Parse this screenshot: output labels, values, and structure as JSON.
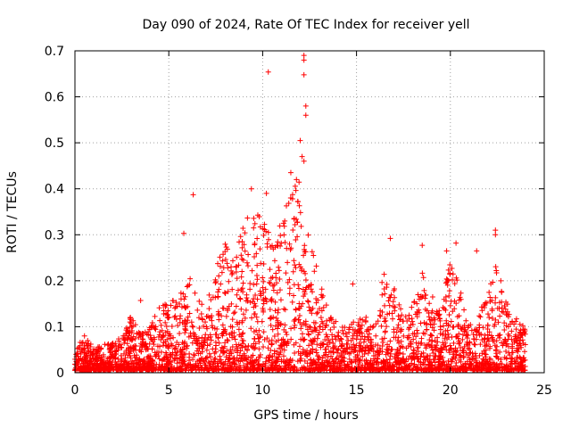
{
  "chart_data": {
    "type": "scatter",
    "title": "Day 090 of 2024, Rate Of TEC Index for receiver yell",
    "xlabel": "GPS time / hours",
    "ylabel": "ROTI / TECUs",
    "xlim": [
      0,
      25
    ],
    "ylim": [
      0,
      0.7
    ],
    "x_ticks": [
      "0",
      "5",
      "10",
      "15",
      "20",
      "25"
    ],
    "y_ticks": [
      "0",
      "0.1",
      "0.2",
      "0.3",
      "0.4",
      "0.5",
      "0.6",
      "0.7"
    ],
    "grid": true,
    "marker": "plus",
    "color": "#ff0000",
    "x_range_hours": [
      0,
      24
    ],
    "outliers": [
      {
        "x": 10.3,
        "y": 0.654
      },
      {
        "x": 12.2,
        "y": 0.69
      },
      {
        "x": 12.2,
        "y": 0.68
      },
      {
        "x": 12.2,
        "y": 0.648
      },
      {
        "x": 12.3,
        "y": 0.58
      },
      {
        "x": 12.3,
        "y": 0.56
      },
      {
        "x": 12.0,
        "y": 0.505
      },
      {
        "x": 12.1,
        "y": 0.47
      },
      {
        "x": 12.2,
        "y": 0.46
      },
      {
        "x": 6.3,
        "y": 0.387
      },
      {
        "x": 9.4,
        "y": 0.4
      },
      {
        "x": 10.2,
        "y": 0.39
      },
      {
        "x": 11.5,
        "y": 0.435
      },
      {
        "x": 11.8,
        "y": 0.42
      },
      {
        "x": 5.8,
        "y": 0.303
      },
      {
        "x": 16.8,
        "y": 0.292
      },
      {
        "x": 18.5,
        "y": 0.277
      },
      {
        "x": 20.3,
        "y": 0.282
      },
      {
        "x": 22.4,
        "y": 0.31
      },
      {
        "x": 22.4,
        "y": 0.3
      },
      {
        "x": 19.8,
        "y": 0.265
      },
      {
        "x": 21.4,
        "y": 0.265
      },
      {
        "x": 14.8,
        "y": 0.193
      },
      {
        "x": 3.5,
        "y": 0.157
      }
    ],
    "envelope": [
      {
        "x": 0.0,
        "y": 0.04
      },
      {
        "x": 0.5,
        "y": 0.08
      },
      {
        "x": 1.0,
        "y": 0.05
      },
      {
        "x": 1.5,
        "y": 0.06
      },
      {
        "x": 2.0,
        "y": 0.06
      },
      {
        "x": 2.5,
        "y": 0.08
      },
      {
        "x": 3.0,
        "y": 0.12
      },
      {
        "x": 3.5,
        "y": 0.08
      },
      {
        "x": 4.0,
        "y": 0.1
      },
      {
        "x": 4.5,
        "y": 0.14
      },
      {
        "x": 5.0,
        "y": 0.16
      },
      {
        "x": 5.5,
        "y": 0.15
      },
      {
        "x": 6.0,
        "y": 0.22
      },
      {
        "x": 6.5,
        "y": 0.16
      },
      {
        "x": 7.0,
        "y": 0.14
      },
      {
        "x": 7.5,
        "y": 0.22
      },
      {
        "x": 8.0,
        "y": 0.28
      },
      {
        "x": 8.5,
        "y": 0.24
      },
      {
        "x": 9.0,
        "y": 0.32
      },
      {
        "x": 9.5,
        "y": 0.36
      },
      {
        "x": 10.0,
        "y": 0.34
      },
      {
        "x": 10.5,
        "y": 0.3
      },
      {
        "x": 11.0,
        "y": 0.33
      },
      {
        "x": 11.5,
        "y": 0.4
      },
      {
        "x": 12.0,
        "y": 0.42
      },
      {
        "x": 12.5,
        "y": 0.3
      },
      {
        "x": 13.0,
        "y": 0.2
      },
      {
        "x": 13.5,
        "y": 0.14
      },
      {
        "x": 14.0,
        "y": 0.12
      },
      {
        "x": 14.5,
        "y": 0.1
      },
      {
        "x": 15.0,
        "y": 0.13
      },
      {
        "x": 15.5,
        "y": 0.12
      },
      {
        "x": 16.0,
        "y": 0.12
      },
      {
        "x": 16.5,
        "y": 0.22
      },
      {
        "x": 17.0,
        "y": 0.18
      },
      {
        "x": 17.5,
        "y": 0.12
      },
      {
        "x": 18.0,
        "y": 0.14
      },
      {
        "x": 18.5,
        "y": 0.22
      },
      {
        "x": 19.0,
        "y": 0.18
      },
      {
        "x": 19.5,
        "y": 0.13
      },
      {
        "x": 20.0,
        "y": 0.25
      },
      {
        "x": 20.5,
        "y": 0.18
      },
      {
        "x": 21.0,
        "y": 0.1
      },
      {
        "x": 21.5,
        "y": 0.13
      },
      {
        "x": 22.0,
        "y": 0.16
      },
      {
        "x": 22.5,
        "y": 0.26
      },
      {
        "x": 23.0,
        "y": 0.15
      },
      {
        "x": 23.5,
        "y": 0.12
      },
      {
        "x": 24.0,
        "y": 0.09
      }
    ]
  }
}
